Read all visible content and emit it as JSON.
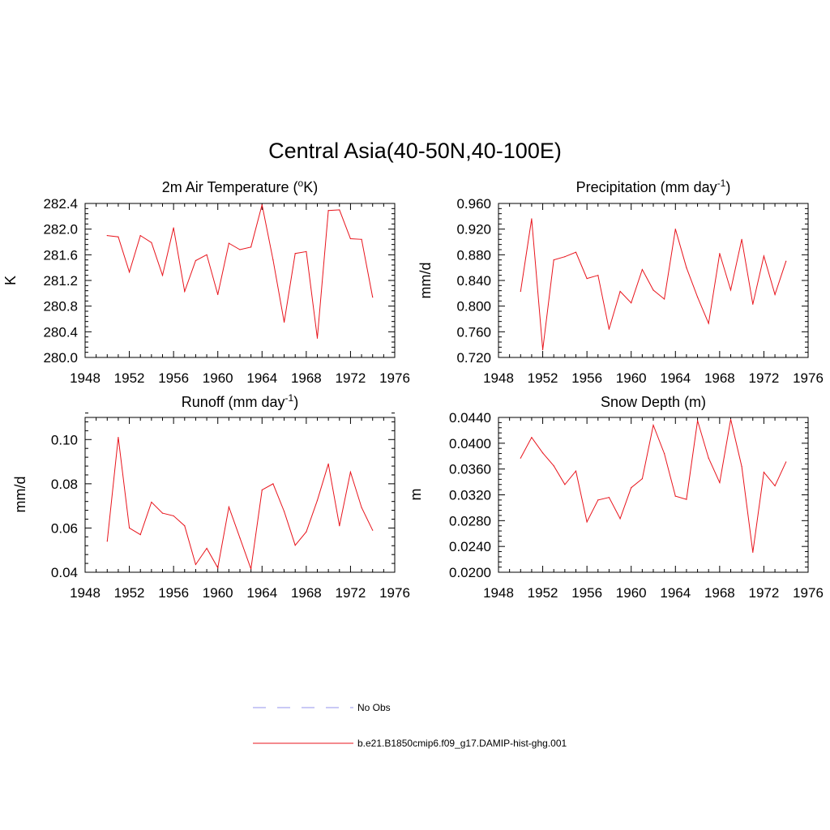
{
  "figure": {
    "title": "Central Asia(40-50N,40-100E)",
    "line_color": "#e8141c",
    "obs_color": "#a9a9f0"
  },
  "legend": {
    "entries": [
      {
        "label": "No Obs",
        "style": "dashed",
        "color": "#a9a9f0"
      },
      {
        "label": "b.e21.B1850cmip6.f09_g17.DAMIP-hist-ghg.001",
        "style": "solid",
        "color": "#e8141c"
      }
    ]
  },
  "chart_data": [
    {
      "type": "line",
      "title": "2m Air Temperature (",
      "title_sup": "o",
      "title_end": "K)",
      "ylabel": "K",
      "xlim": [
        1948,
        1976
      ],
      "ylim": [
        280.0,
        282.4
      ],
      "x_ticks": [
        "1948",
        "1952",
        "1956",
        "1960",
        "1964",
        "1968",
        "1972",
        "1976"
      ],
      "y_ticks": [
        "280.0",
        "280.4",
        "280.8",
        "281.2",
        "281.6",
        "282.0",
        "282.4"
      ],
      "series": [
        {
          "x": [
            1950,
            1951,
            1952,
            1953,
            1954,
            1955,
            1956,
            1957,
            1958,
            1959,
            1960,
            1961,
            1962,
            1963,
            1964,
            1965,
            1966,
            1967,
            1968,
            1969,
            1970,
            1971,
            1972,
            1973,
            1974
          ],
          "values": [
            281.9,
            281.88,
            281.33,
            281.9,
            281.79,
            281.28,
            282.02,
            281.03,
            281.51,
            281.6,
            280.98,
            281.78,
            281.68,
            281.72,
            282.38,
            281.52,
            280.55,
            281.62,
            281.65,
            280.3,
            282.29,
            282.3,
            281.85,
            281.84,
            280.94
          ]
        }
      ]
    },
    {
      "type": "line",
      "title": "Precipitation (mm day",
      "title_sup": "-1",
      "title_end": ")",
      "ylabel": "mm/d",
      "xlim": [
        1948,
        1976
      ],
      "ylim": [
        0.72,
        0.96
      ],
      "x_ticks": [
        "1948",
        "1952",
        "1956",
        "1960",
        "1964",
        "1968",
        "1972",
        "1976"
      ],
      "y_ticks": [
        "0.720",
        "0.760",
        "0.800",
        "0.840",
        "0.880",
        "0.920",
        "0.960"
      ],
      "series": [
        {
          "x": [
            1950,
            1951,
            1952,
            1953,
            1954,
            1955,
            1956,
            1957,
            1958,
            1959,
            1960,
            1961,
            1962,
            1963,
            1964,
            1965,
            1966,
            1967,
            1968,
            1969,
            1970,
            1971,
            1972,
            1973,
            1974
          ],
          "values": [
            0.823,
            0.936,
            0.732,
            0.872,
            0.877,
            0.884,
            0.843,
            0.848,
            0.764,
            0.823,
            0.805,
            0.857,
            0.825,
            0.811,
            0.92,
            0.86,
            0.814,
            0.773,
            0.882,
            0.825,
            0.904,
            0.803,
            0.878,
            0.818,
            0.87
          ]
        }
      ]
    },
    {
      "type": "line",
      "title": "Runoff (mm day",
      "title_sup": "-1",
      "title_end": ")",
      "ylabel": "mm/d",
      "xlim": [
        1948,
        1976
      ],
      "ylim": [
        0.04,
        0.11
      ],
      "x_ticks": [
        "1948",
        "1952",
        "1956",
        "1960",
        "1964",
        "1968",
        "1972",
        "1976"
      ],
      "y_ticks": [
        "0.04",
        "0.06",
        "0.08",
        "0.10"
      ],
      "series": [
        {
          "x": [
            1950,
            1951,
            1952,
            1953,
            1954,
            1955,
            1956,
            1957,
            1958,
            1959,
            1960,
            1961,
            1962,
            1963,
            1964,
            1965,
            1966,
            1967,
            1968,
            1969,
            1970,
            1971,
            1972,
            1973,
            1974
          ],
          "values": [
            0.054,
            0.101,
            0.06,
            0.057,
            0.0717,
            0.0667,
            0.0655,
            0.061,
            0.0435,
            0.0508,
            0.042,
            0.0695,
            0.0555,
            0.0415,
            0.0772,
            0.08,
            0.0675,
            0.0522,
            0.0583,
            0.0725,
            0.089,
            0.061,
            0.0853,
            0.0693,
            0.059
          ]
        }
      ]
    },
    {
      "type": "line",
      "title": "Snow Depth (m)",
      "title_sup": "",
      "title_end": "",
      "ylabel": "m",
      "xlim": [
        1948,
        1976
      ],
      "ylim": [
        0.02,
        0.044
      ],
      "x_ticks": [
        "1948",
        "1952",
        "1956",
        "1960",
        "1964",
        "1968",
        "1972",
        "1976"
      ],
      "y_ticks": [
        "0.0200",
        "0.0240",
        "0.0280",
        "0.0320",
        "0.0360",
        "0.0400",
        "0.0440"
      ],
      "series": [
        {
          "x": [
            1950,
            1951,
            1952,
            1953,
            1954,
            1955,
            1956,
            1957,
            1958,
            1959,
            1960,
            1961,
            1962,
            1963,
            1964,
            1965,
            1966,
            1967,
            1968,
            1969,
            1970,
            1971,
            1972,
            1973,
            1974
          ],
          "values": [
            0.0377,
            0.0409,
            0.0385,
            0.0365,
            0.0336,
            0.0357,
            0.0278,
            0.0312,
            0.0316,
            0.0283,
            0.0331,
            0.0345,
            0.0428,
            0.0384,
            0.0318,
            0.0313,
            0.0435,
            0.0377,
            0.0339,
            0.0437,
            0.0364,
            0.0231,
            0.0355,
            0.0334,
            0.0371
          ]
        }
      ]
    }
  ]
}
